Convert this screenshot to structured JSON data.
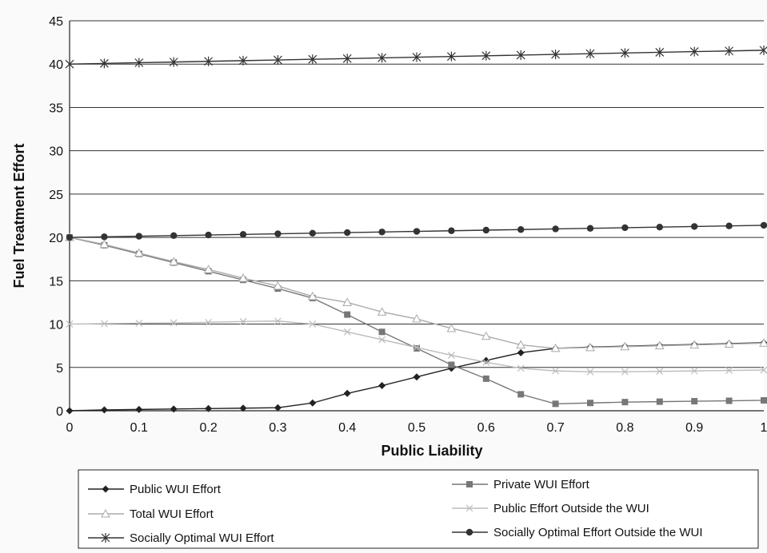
{
  "chart_data": {
    "type": "line",
    "title": "",
    "xlabel": "Public Liability",
    "ylabel": "Fuel Treatment Effort",
    "xlim": [
      0,
      1
    ],
    "ylim": [
      0,
      45
    ],
    "x": [
      0,
      0.05,
      0.1,
      0.15,
      0.2,
      0.25,
      0.3,
      0.35,
      0.4,
      0.45,
      0.5,
      0.55,
      0.6,
      0.65,
      0.7,
      0.75,
      0.8,
      0.85,
      0.9,
      0.95,
      1
    ],
    "x_tick_labels": [
      "0",
      "0.1",
      "0.2",
      "0.3",
      "0.4",
      "0.5",
      "0.6",
      "0.7",
      "0.8",
      "0.9",
      "1"
    ],
    "y_tick_labels": [
      "0",
      "5",
      "10",
      "15",
      "20",
      "25",
      "30",
      "35",
      "40",
      "45"
    ],
    "grid": "horizontal",
    "legend_position": "bottom",
    "series": [
      {
        "name": "Public WUI Effort",
        "marker": "diamond",
        "color": "#222222",
        "values": [
          0,
          0.1,
          0.15,
          0.2,
          0.25,
          0.3,
          0.35,
          0.9,
          2.0,
          2.9,
          3.9,
          4.9,
          5.8,
          6.7,
          7.2,
          7.35,
          7.45,
          7.55,
          7.65,
          7.75,
          7.85
        ]
      },
      {
        "name": "Private WUI Effort",
        "marker": "square",
        "color": "#777777",
        "values": [
          20,
          19.1,
          18.1,
          17.1,
          16.1,
          15.1,
          14.1,
          13.0,
          11.1,
          9.1,
          7.2,
          5.3,
          3.7,
          1.9,
          0.8,
          0.9,
          1.0,
          1.05,
          1.1,
          1.15,
          1.2
        ]
      },
      {
        "name": "Total WUI Effort",
        "marker": "triangle",
        "color": "#aaaaaa",
        "values": [
          20,
          19.2,
          18.2,
          17.2,
          16.3,
          15.3,
          14.4,
          13.2,
          12.5,
          11.4,
          10.6,
          9.5,
          8.6,
          7.6,
          7.2,
          7.3,
          7.4,
          7.5,
          7.6,
          7.7,
          7.8
        ]
      },
      {
        "name": "Public Effort Outside the WUI",
        "marker": "x",
        "color": "#bbbbbb",
        "values": [
          10,
          10.05,
          10.1,
          10.15,
          10.2,
          10.3,
          10.35,
          10.0,
          9.1,
          8.2,
          7.3,
          6.4,
          5.6,
          4.9,
          4.6,
          4.5,
          4.5,
          4.55,
          4.6,
          4.65,
          4.7
        ]
      },
      {
        "name": "Socially Optimal WUI Effort",
        "marker": "asterisk",
        "color": "#333333",
        "values": [
          40,
          40.08,
          40.16,
          40.24,
          40.32,
          40.4,
          40.48,
          40.56,
          40.64,
          40.72,
          40.8,
          40.88,
          40.96,
          41.04,
          41.12,
          41.2,
          41.28,
          41.36,
          41.44,
          41.52,
          41.6
        ]
      },
      {
        "name": "Socially Optimal Effort Outside the WUI",
        "marker": "circle",
        "color": "#333333",
        "values": [
          20,
          20.07,
          20.14,
          20.21,
          20.28,
          20.35,
          20.42,
          20.49,
          20.56,
          20.63,
          20.7,
          20.77,
          20.84,
          20.91,
          20.98,
          21.05,
          21.12,
          21.19,
          21.26,
          21.33,
          21.4
        ]
      }
    ]
  }
}
